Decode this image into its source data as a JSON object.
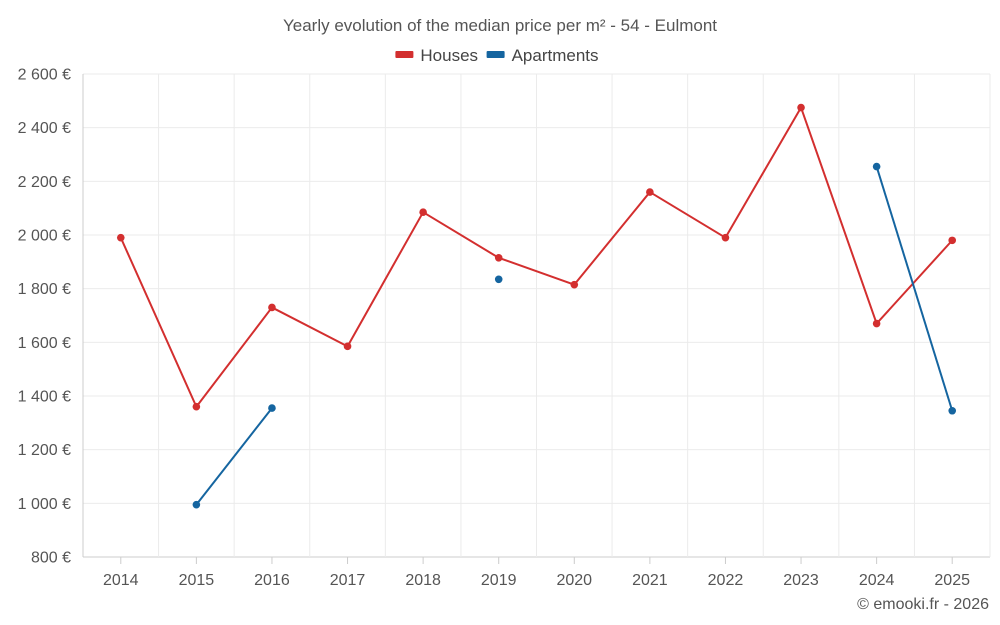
{
  "chart_data": {
    "type": "line",
    "title": "Yearly evolution of the median price per m² - 54 - Eulmont",
    "categories": [
      "2014",
      "2015",
      "2016",
      "2017",
      "2018",
      "2019",
      "2020",
      "2021",
      "2022",
      "2023",
      "2024",
      "2025"
    ],
    "y_ticks": [
      "800 €",
      "1 000 €",
      "1 200 €",
      "1 400 €",
      "1 600 €",
      "1 800 €",
      "2 000 €",
      "2 200 €",
      "2 400 €",
      "2 600 €"
    ],
    "ylim": [
      800,
      2600
    ],
    "xlabel": "",
    "ylabel": "",
    "grid": true,
    "legend_position": "top-center",
    "series": [
      {
        "name": "Houses",
        "color": "#d32f2f",
        "values": [
          1990,
          1360,
          1730,
          1585,
          2085,
          1915,
          1815,
          2160,
          1990,
          2475,
          1670,
          1980
        ]
      },
      {
        "name": "Apartments",
        "color": "#1565a0",
        "values": [
          null,
          995,
          1355,
          null,
          null,
          1835,
          null,
          null,
          null,
          null,
          2255,
          1345
        ]
      }
    ]
  },
  "credit": "© emooki.fr - 2026"
}
